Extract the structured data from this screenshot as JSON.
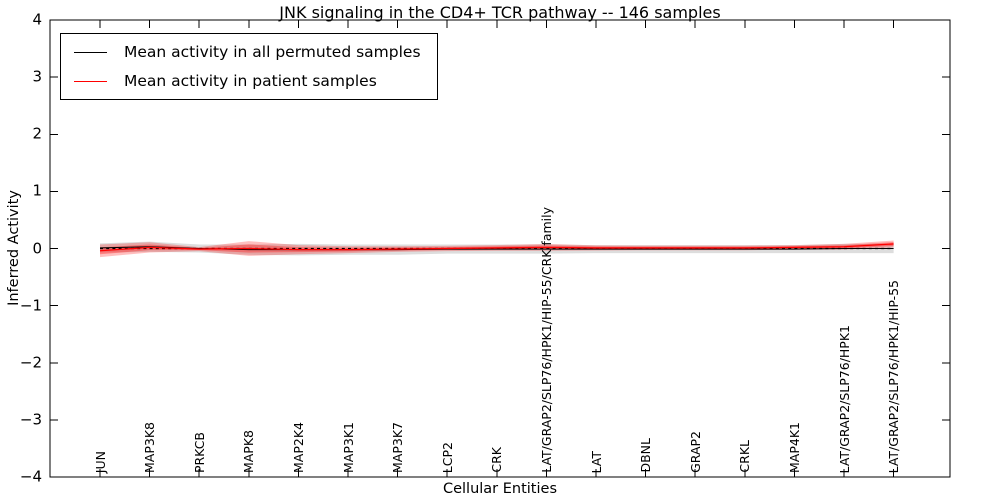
{
  "figure": {
    "title": "JNK signaling in the CD4+ TCR pathway -- 146 samples"
  },
  "chart_data": {
    "type": "line",
    "title": "JNK signaling in the CD4+ TCR pathway -- 146 samples",
    "xlabel": "Cellular Entities",
    "ylabel": "Inferred Activity",
    "ylim": [
      -4,
      4
    ],
    "ytick_values": [
      4,
      3,
      2,
      1,
      0,
      -1,
      -2,
      -3,
      -4
    ],
    "ytick_labels": [
      "4",
      "3",
      "2",
      "1",
      "0",
      "−1",
      "−2",
      "−3",
      "−4"
    ],
    "grid": false,
    "legend_position": "upper-left",
    "categories": [
      "JUN",
      "MAP3K8",
      "PRKCB",
      "MAPK8",
      "MAP2K4",
      "MAP3K1",
      "MAP3K7",
      "LCP2",
      "CRK",
      "LAT/GRAP2/SLP76/HPK1/HIP-55/CRK family",
      "LAT",
      "DBNL",
      "GRAP2",
      "CRKL",
      "MAP4K1",
      "LAT/GRAP2/SLP76/HPK1",
      "LAT/GRAP2/SLP76/HPK1/HIP-55"
    ],
    "series": [
      {
        "name": "Mean activity in all permuted samples",
        "color": "#000000",
        "values": [
          0.01,
          0.03,
          0.0,
          -0.02,
          -0.02,
          -0.02,
          -0.02,
          -0.01,
          -0.01,
          -0.01,
          -0.01,
          -0.01,
          -0.01,
          -0.01,
          -0.01,
          0.0,
          0.0
        ],
        "band_halfwidth": [
          0.08,
          0.09,
          0.07,
          0.09,
          0.1,
          0.09,
          0.09,
          0.08,
          0.08,
          0.08,
          0.07,
          0.07,
          0.07,
          0.07,
          0.07,
          0.08,
          0.08
        ],
        "band_color": "#bbbbbb"
      },
      {
        "name": "Mean activity in patient samples",
        "color": "#ff0000",
        "values": [
          -0.04,
          0.02,
          -0.01,
          0.0,
          -0.02,
          -0.02,
          -0.01,
          0.0,
          0.01,
          0.02,
          0.01,
          0.01,
          0.01,
          0.01,
          0.02,
          0.03,
          0.08
        ],
        "band_halfwidth": [
          0.11,
          0.09,
          0.035,
          0.13,
          0.08,
          0.06,
          0.05,
          0.045,
          0.05,
          0.06,
          0.045,
          0.04,
          0.04,
          0.04,
          0.04,
          0.05,
          0.06
        ],
        "band_color": "#ff0000"
      }
    ],
    "zero_line": {
      "value": 0,
      "style": "dashed",
      "color": "#000000"
    }
  }
}
